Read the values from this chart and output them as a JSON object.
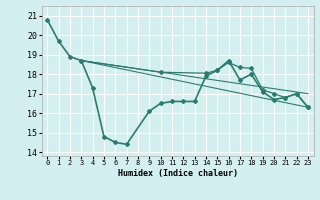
{
  "title": "",
  "xlabel": "Humidex (Indice chaleur)",
  "bg_color": "#d4efef",
  "grid_color": "#ffffff",
  "line_color": "#2a7d6e",
  "xlim": [
    -0.5,
    23.5
  ],
  "ylim": [
    13.8,
    21.5
  ],
  "yticks": [
    14,
    15,
    16,
    17,
    18,
    19,
    20,
    21
  ],
  "xticks": [
    0,
    1,
    2,
    3,
    4,
    5,
    6,
    7,
    8,
    9,
    10,
    11,
    12,
    13,
    14,
    15,
    16,
    17,
    18,
    19,
    20,
    21,
    22,
    23
  ],
  "lines": [
    {
      "x": [
        0,
        1,
        2,
        3,
        4,
        5,
        6,
        7,
        9,
        10,
        11,
        12,
        13,
        14,
        15,
        16,
        17,
        18,
        19,
        20,
        21,
        22,
        23
      ],
      "y": [
        20.8,
        19.7,
        18.9,
        18.7,
        17.3,
        14.8,
        14.5,
        14.4,
        16.1,
        16.5,
        16.6,
        16.6,
        16.6,
        17.9,
        18.2,
        18.7,
        17.7,
        18.0,
        17.1,
        16.7,
        16.8,
        17.0,
        16.3
      ],
      "marker": true,
      "lw": 1.2,
      "zorder": 5
    },
    {
      "x": [
        3,
        23
      ],
      "y": [
        18.7,
        16.3
      ],
      "marker": false,
      "lw": 0.8,
      "zorder": 3
    },
    {
      "x": [
        3,
        23
      ],
      "y": [
        18.7,
        17.0
      ],
      "marker": false,
      "lw": 0.8,
      "zorder": 3
    },
    {
      "x": [
        3,
        10,
        14,
        15,
        16,
        17,
        18,
        19,
        20,
        21,
        22,
        23
      ],
      "y": [
        18.7,
        18.1,
        18.05,
        18.2,
        18.6,
        18.35,
        18.3,
        17.2,
        17.0,
        16.8,
        17.0,
        16.3
      ],
      "marker": true,
      "lw": 0.9,
      "zorder": 4
    }
  ]
}
